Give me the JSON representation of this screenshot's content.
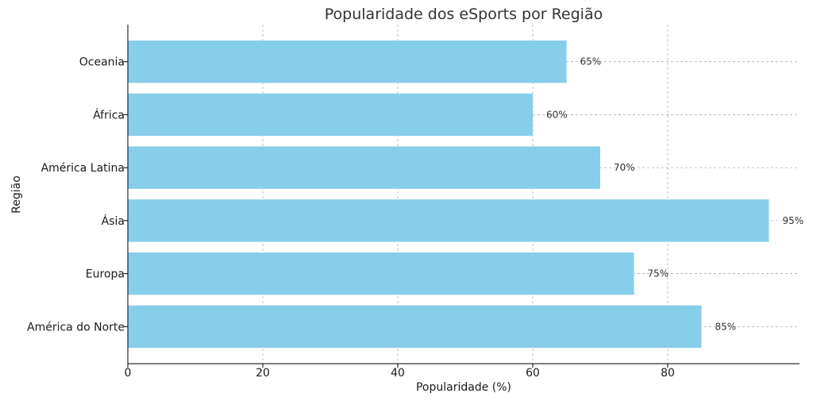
{
  "chart_data": {
    "type": "bar",
    "orientation": "horizontal",
    "title": "Popularidade dos eSports por Região",
    "xlabel": "Popularidade (%)",
    "ylabel": "Região",
    "categories": [
      "América do Norte",
      "Europa",
      "Ásia",
      "América Latina",
      "África",
      "Oceania"
    ],
    "values": [
      85,
      75,
      95,
      70,
      60,
      65
    ],
    "value_labels": [
      "85%",
      "75%",
      "95%",
      "70%",
      "60%",
      "65%"
    ],
    "xlim": [
      0,
      100
    ],
    "xticks": [
      0,
      20,
      40,
      60,
      80
    ],
    "grid": true,
    "bar_color": "#87ceeb"
  }
}
